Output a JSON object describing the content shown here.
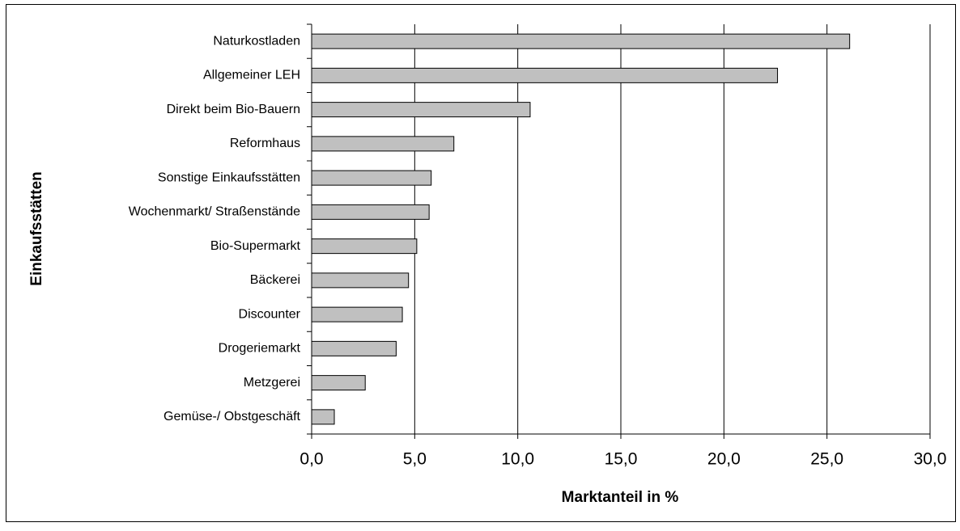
{
  "chart_data": {
    "type": "bar",
    "orientation": "horizontal",
    "xlabel": "Marktanteil in %",
    "ylabel": "Einkaufsstätten",
    "categories": [
      "Naturkostladen",
      "Allgemeiner LEH",
      "Direkt beim Bio-Bauern",
      "Reformhaus",
      "Sonstige Einkaufsstätten",
      "Wochenmarkt/ Straßenstände",
      "Bio-Supermarkt",
      "Bäckerei",
      "Discounter",
      "Drogeriemarkt",
      "Metzgerei",
      "Gemüse-/ Obstgeschäft"
    ],
    "values": [
      26.1,
      22.6,
      10.6,
      6.9,
      5.8,
      5.7,
      5.1,
      4.7,
      4.4,
      4.1,
      2.6,
      1.1
    ],
    "color": "#c0c0c0",
    "xlim": [
      0,
      30
    ],
    "xticks": [
      {
        "value": 0,
        "label": "0,0"
      },
      {
        "value": 5,
        "label": "5,0"
      },
      {
        "value": 10,
        "label": "10,0"
      },
      {
        "value": 15,
        "label": "15,0"
      },
      {
        "value": 20,
        "label": "20,0"
      },
      {
        "value": 25,
        "label": "25,0"
      },
      {
        "value": 30,
        "label": "30,0"
      }
    ],
    "grid": true
  }
}
